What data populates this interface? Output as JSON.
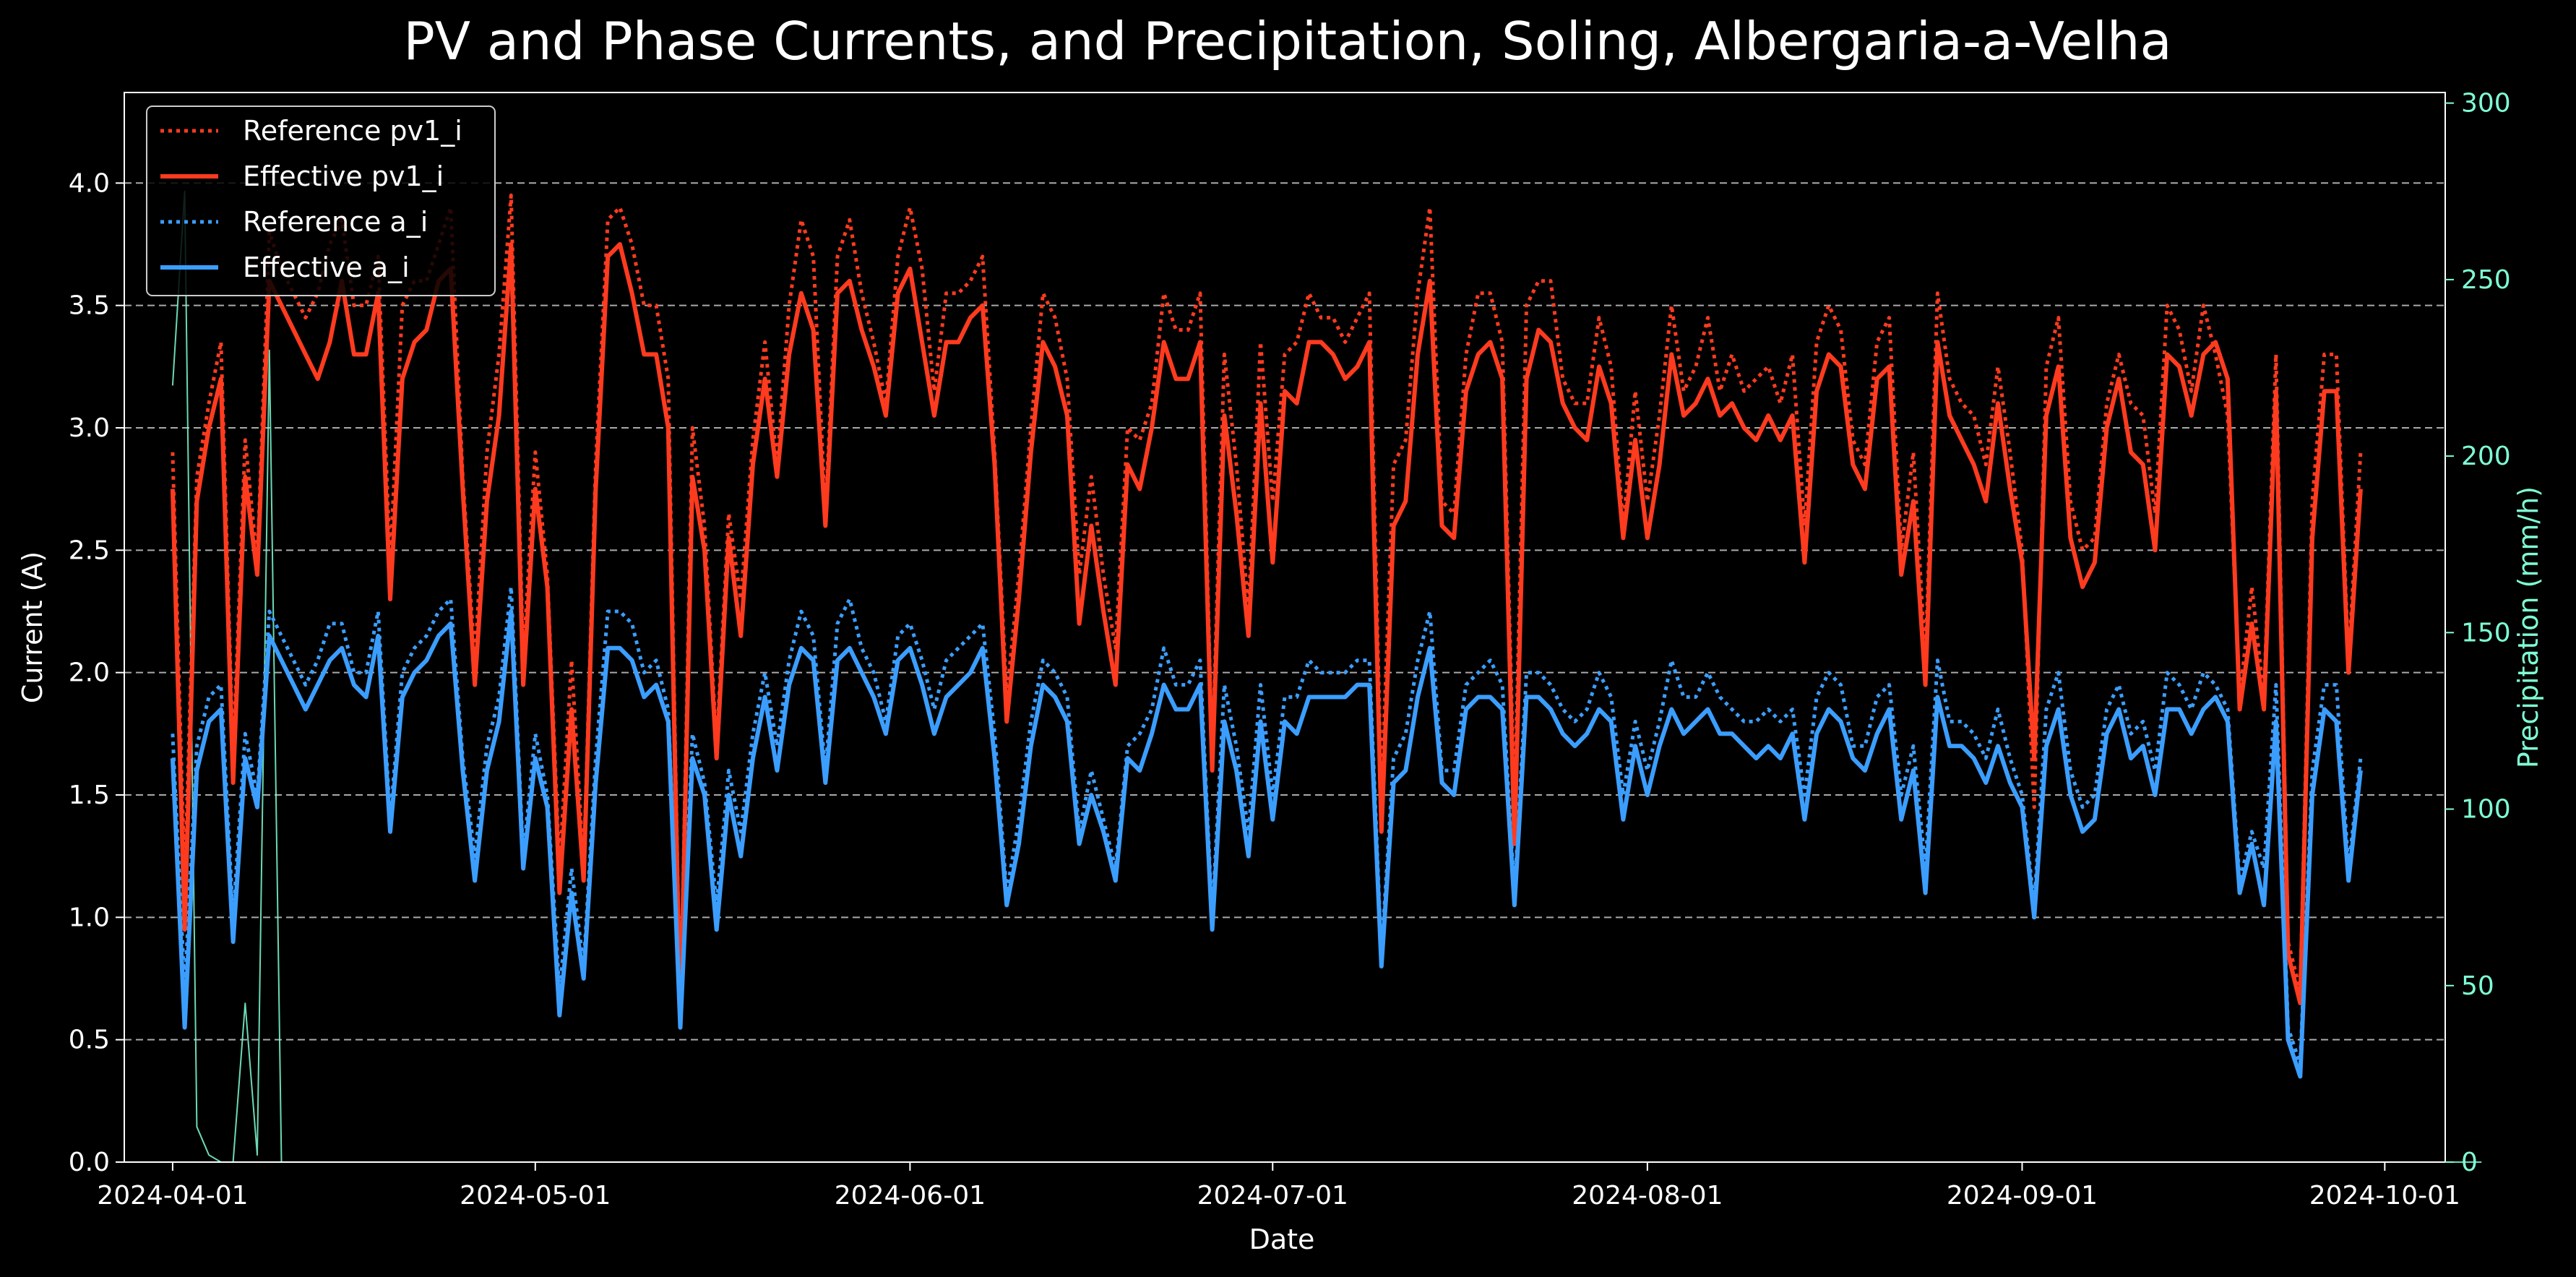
{
  "chart_data": {
    "type": "line",
    "title": "PV and Phase Currents, and Precipitation, Soling, Albergaria-a-Velha",
    "xlabel": "Date",
    "ylabel": "Current (A)",
    "y2label": "Precipitation (mm/h)",
    "ylim": [
      0,
      4.37
    ],
    "y2lim": [
      0,
      303
    ],
    "xlim": [
      "2024-03-28",
      "2024-10-06"
    ],
    "yticks": [
      "0.0",
      "0.5",
      "1.0",
      "1.5",
      "2.0",
      "2.5",
      "3.0",
      "3.5",
      "4.0"
    ],
    "y2ticks": [
      "0",
      "50",
      "100",
      "150",
      "200",
      "250",
      "300"
    ],
    "xticks": [
      "2024-04-01",
      "2024-05-01",
      "2024-06-01",
      "2024-07-01",
      "2024-08-01",
      "2024-09-01",
      "2024-10-01"
    ],
    "grid": "horizontal dashed",
    "legend_position": "top-left",
    "start_date": "2024-04-01",
    "series": [
      {
        "name": "Reference pv1_i",
        "color": "#ff3b1f",
        "style": "dotted",
        "axis": "left",
        "values": [
          2.9,
          1.15,
          2.8,
          3.1,
          3.35,
          1.65,
          2.95,
          2.45,
          3.8,
          3.65,
          3.55,
          3.45,
          3.55,
          3.75,
          3.85,
          3.5,
          3.5,
          3.7,
          2.45,
          3.5,
          3.6,
          3.6,
          3.75,
          3.9,
          2.8,
          2.05,
          2.9,
          3.3,
          3.95,
          2.05,
          2.9,
          2.4,
          1.2,
          2.05,
          1.2,
          2.85,
          3.85,
          3.9,
          3.75,
          3.5,
          3.5,
          3.2,
          0.6,
          3.0,
          2.6,
          1.7,
          2.65,
          2.3,
          2.95,
          3.35,
          2.85,
          3.5,
          3.85,
          3.7,
          2.65,
          3.7,
          3.85,
          3.55,
          3.35,
          3.1,
          3.7,
          3.9,
          3.65,
          3.15,
          3.55,
          3.55,
          3.6,
          3.7,
          2.9,
          1.9,
          2.4,
          3.0,
          3.55,
          3.45,
          3.2,
          2.4,
          2.8,
          2.4,
          2.1,
          3.0,
          2.95,
          3.1,
          3.55,
          3.4,
          3.4,
          3.55,
          1.65,
          3.3,
          2.85,
          2.25,
          3.35,
          2.7,
          3.3,
          3.35,
          3.55,
          3.45,
          3.45,
          3.35,
          3.45,
          3.55,
          1.5,
          2.85,
          2.95,
          3.55,
          3.9,
          2.7,
          2.65,
          3.3,
          3.55,
          3.55,
          3.35,
          1.45,
          3.5,
          3.6,
          3.6,
          3.2,
          3.1,
          3.1,
          3.45,
          3.25,
          2.6,
          3.15,
          2.7,
          3.05,
          3.5,
          3.15,
          3.25,
          3.45,
          3.15,
          3.3,
          3.15,
          3.2,
          3.25,
          3.1,
          3.3,
          2.6,
          3.35,
          3.5,
          3.4,
          2.95,
          2.85,
          3.35,
          3.45,
          2.5,
          2.9,
          2.05,
          3.55,
          3.2,
          3.1,
          3.05,
          2.85,
          3.25,
          2.9,
          2.5,
          1.45,
          3.25,
          3.45,
          2.7,
          2.5,
          2.55,
          3.1,
          3.3,
          3.1,
          3.05,
          2.65,
          3.5,
          3.4,
          3.15,
          3.5,
          3.3,
          3.05,
          1.9,
          2.35,
          1.9,
          3.3,
          0.9,
          0.7,
          2.7,
          3.3,
          3.3,
          2.05,
          2.9
        ]
      },
      {
        "name": "Effective pv1_i",
        "color": "#ff3b1f",
        "style": "solid",
        "axis": "left",
        "values": [
          2.75,
          0.95,
          2.7,
          3.0,
          3.2,
          1.55,
          2.8,
          2.4,
          3.6,
          3.5,
          3.4,
          3.3,
          3.2,
          3.35,
          3.6,
          3.3,
          3.3,
          3.55,
          2.3,
          3.2,
          3.35,
          3.4,
          3.6,
          3.65,
          2.75,
          1.95,
          2.7,
          3.05,
          3.75,
          1.95,
          2.75,
          2.35,
          1.1,
          1.85,
          1.15,
          2.75,
          3.7,
          3.75,
          3.55,
          3.3,
          3.3,
          3.0,
          0.55,
          2.8,
          2.5,
          1.65,
          2.55,
          2.15,
          2.85,
          3.2,
          2.8,
          3.3,
          3.55,
          3.4,
          2.6,
          3.55,
          3.6,
          3.4,
          3.25,
          3.05,
          3.55,
          3.65,
          3.35,
          3.05,
          3.35,
          3.35,
          3.45,
          3.5,
          2.85,
          1.8,
          2.3,
          2.9,
          3.35,
          3.25,
          3.05,
          2.2,
          2.6,
          2.25,
          1.95,
          2.85,
          2.75,
          3.0,
          3.35,
          3.2,
          3.2,
          3.35,
          1.6,
          3.05,
          2.65,
          2.15,
          3.1,
          2.45,
          3.15,
          3.1,
          3.35,
          3.35,
          3.3,
          3.2,
          3.25,
          3.35,
          1.35,
          2.6,
          2.7,
          3.3,
          3.6,
          2.6,
          2.55,
          3.15,
          3.3,
          3.35,
          3.2,
          1.3,
          3.2,
          3.4,
          3.35,
          3.1,
          3.0,
          2.95,
          3.25,
          3.1,
          2.55,
          2.95,
          2.55,
          2.85,
          3.3,
          3.05,
          3.1,
          3.2,
          3.05,
          3.1,
          3.0,
          2.95,
          3.05,
          2.95,
          3.05,
          2.45,
          3.15,
          3.3,
          3.25,
          2.85,
          2.75,
          3.2,
          3.25,
          2.4,
          2.7,
          1.95,
          3.35,
          3.05,
          2.95,
          2.85,
          2.7,
          3.1,
          2.75,
          2.45,
          1.65,
          3.05,
          3.25,
          2.55,
          2.35,
          2.45,
          3.0,
          3.2,
          2.9,
          2.85,
          2.5,
          3.3,
          3.25,
          3.05,
          3.3,
          3.35,
          3.2,
          1.85,
          2.2,
          1.85,
          3.15,
          0.85,
          0.65,
          2.55,
          3.15,
          3.15,
          2.0,
          2.75
        ]
      },
      {
        "name": "Reference a_i",
        "color": "#3b9eff",
        "style": "dotted",
        "axis": "left",
        "values": [
          1.75,
          0.7,
          1.7,
          1.9,
          1.95,
          1.0,
          1.75,
          1.5,
          2.25,
          2.15,
          2.05,
          1.95,
          2.05,
          2.2,
          2.2,
          2.0,
          2.0,
          2.25,
          1.4,
          2.0,
          2.1,
          2.15,
          2.25,
          2.3,
          1.65,
          1.25,
          1.7,
          1.9,
          2.35,
          1.25,
          1.75,
          1.5,
          0.7,
          1.2,
          0.8,
          1.65,
          2.25,
          2.25,
          2.2,
          2.0,
          2.05,
          1.85,
          0.6,
          1.75,
          1.55,
          1.05,
          1.6,
          1.35,
          1.75,
          2.0,
          1.7,
          2.05,
          2.25,
          2.15,
          1.6,
          2.2,
          2.3,
          2.1,
          2.0,
          1.8,
          2.15,
          2.2,
          2.05,
          1.85,
          2.05,
          2.1,
          2.15,
          2.2,
          1.75,
          1.1,
          1.4,
          1.8,
          2.05,
          2.0,
          1.9,
          1.35,
          1.6,
          1.4,
          1.2,
          1.7,
          1.75,
          1.85,
          2.1,
          1.95,
          1.95,
          2.05,
          1.0,
          1.95,
          1.7,
          1.35,
          1.95,
          1.5,
          1.9,
          1.9,
          2.05,
          2.0,
          2.0,
          2.0,
          2.05,
          2.05,
          0.85,
          1.65,
          1.75,
          2.05,
          2.25,
          1.6,
          1.6,
          1.95,
          2.0,
          2.05,
          1.95,
          1.1,
          2.0,
          2.0,
          1.95,
          1.85,
          1.8,
          1.85,
          2.0,
          1.9,
          1.5,
          1.8,
          1.6,
          1.8,
          2.05,
          1.9,
          1.9,
          2.0,
          1.9,
          1.85,
          1.8,
          1.8,
          1.85,
          1.8,
          1.85,
          1.5,
          1.9,
          2.0,
          1.95,
          1.7,
          1.7,
          1.9,
          1.95,
          1.5,
          1.7,
          1.2,
          2.05,
          1.8,
          1.8,
          1.75,
          1.65,
          1.85,
          1.65,
          1.5,
          1.05,
          1.85,
          2.0,
          1.6,
          1.45,
          1.5,
          1.85,
          1.95,
          1.75,
          1.8,
          1.6,
          2.0,
          1.95,
          1.85,
          2.0,
          1.95,
          1.85,
          1.15,
          1.35,
          1.2,
          1.95,
          0.55,
          0.4,
          1.6,
          1.95,
          1.95,
          1.2,
          1.65
        ]
      },
      {
        "name": "Effective a_i",
        "color": "#3b9eff",
        "style": "solid",
        "axis": "left",
        "values": [
          1.65,
          0.55,
          1.6,
          1.8,
          1.85,
          0.9,
          1.65,
          1.45,
          2.15,
          2.05,
          1.95,
          1.85,
          1.95,
          2.05,
          2.1,
          1.95,
          1.9,
          2.15,
          1.35,
          1.9,
          2.0,
          2.05,
          2.15,
          2.2,
          1.6,
          1.15,
          1.6,
          1.8,
          2.25,
          1.2,
          1.65,
          1.45,
          0.6,
          1.1,
          0.75,
          1.55,
          2.1,
          2.1,
          2.05,
          1.9,
          1.95,
          1.8,
          0.55,
          1.65,
          1.5,
          0.95,
          1.5,
          1.25,
          1.65,
          1.9,
          1.6,
          1.95,
          2.1,
          2.05,
          1.55,
          2.05,
          2.1,
          2.0,
          1.9,
          1.75,
          2.05,
          2.1,
          1.95,
          1.75,
          1.9,
          1.95,
          2.0,
          2.1,
          1.65,
          1.05,
          1.3,
          1.7,
          1.95,
          1.9,
          1.8,
          1.3,
          1.5,
          1.35,
          1.15,
          1.65,
          1.6,
          1.75,
          1.95,
          1.85,
          1.85,
          1.95,
          0.95,
          1.8,
          1.6,
          1.25,
          1.8,
          1.4,
          1.8,
          1.75,
          1.9,
          1.9,
          1.9,
          1.9,
          1.95,
          1.95,
          0.8,
          1.55,
          1.6,
          1.9,
          2.1,
          1.55,
          1.5,
          1.85,
          1.9,
          1.9,
          1.85,
          1.05,
          1.9,
          1.9,
          1.85,
          1.75,
          1.7,
          1.75,
          1.85,
          1.8,
          1.4,
          1.7,
          1.5,
          1.7,
          1.85,
          1.75,
          1.8,
          1.85,
          1.75,
          1.75,
          1.7,
          1.65,
          1.7,
          1.65,
          1.75,
          1.4,
          1.75,
          1.85,
          1.8,
          1.65,
          1.6,
          1.75,
          1.85,
          1.4,
          1.6,
          1.1,
          1.9,
          1.7,
          1.7,
          1.65,
          1.55,
          1.7,
          1.55,
          1.45,
          1.0,
          1.7,
          1.85,
          1.5,
          1.35,
          1.4,
          1.75,
          1.85,
          1.65,
          1.7,
          1.5,
          1.85,
          1.85,
          1.75,
          1.85,
          1.9,
          1.8,
          1.1,
          1.3,
          1.05,
          1.8,
          0.5,
          0.35,
          1.5,
          1.85,
          1.8,
          1.15,
          1.6
        ]
      },
      {
        "name": "Precipitation",
        "color": "#7fffd4",
        "style": "thin",
        "axis": "right",
        "values": [
          220,
          275,
          10,
          2,
          0,
          0,
          45,
          2,
          230,
          0,
          0,
          0,
          0,
          0,
          0,
          0,
          0,
          0,
          0,
          0,
          0,
          0,
          0,
          0,
          0,
          0,
          0,
          0,
          0,
          0,
          0,
          0,
          0,
          0,
          0,
          0,
          0,
          0,
          0,
          0,
          0,
          0,
          0,
          0,
          0,
          0,
          0,
          0,
          0,
          0,
          0,
          0,
          0,
          0,
          0,
          0,
          0,
          0,
          0,
          0,
          0,
          0,
          0,
          0,
          0,
          0,
          0,
          0,
          0,
          0,
          0,
          0,
          0,
          0,
          0,
          0,
          0,
          0,
          0,
          0,
          0,
          0,
          0,
          0,
          0,
          0,
          0,
          0,
          0,
          0,
          0,
          0,
          0,
          0,
          0,
          0,
          0,
          0,
          0,
          0,
          0,
          0,
          0,
          0,
          0,
          0,
          0,
          0,
          0,
          0,
          0,
          0,
          0,
          0,
          0,
          0,
          0,
          0,
          0,
          0,
          0,
          0,
          0,
          0,
          0,
          0,
          0,
          0,
          0,
          0,
          0,
          0,
          0,
          0,
          0,
          0,
          0,
          0,
          0,
          0,
          0,
          0,
          0,
          0,
          0,
          0,
          0,
          0,
          0,
          0,
          0,
          0,
          0,
          0,
          0,
          0,
          0,
          0,
          0,
          0,
          0,
          0,
          0,
          0,
          0,
          0,
          0,
          0,
          0,
          0,
          0,
          0,
          0,
          0,
          0,
          0,
          0,
          0,
          0,
          0,
          0,
          0,
          0,
          0,
          0,
          0,
          0,
          0,
          0,
          0,
          0,
          0
        ]
      }
    ]
  },
  "legend": {
    "items": [
      {
        "label": "Reference pv1_i",
        "color": "#ff3b1f",
        "style": "dotted"
      },
      {
        "label": "Effective pv1_i",
        "color": "#ff3b1f",
        "style": "solid"
      },
      {
        "label": "Reference a_i",
        "color": "#3b9eff",
        "style": "dotted"
      },
      {
        "label": "Effective a_i",
        "color": "#3b9eff",
        "style": "solid"
      }
    ]
  }
}
